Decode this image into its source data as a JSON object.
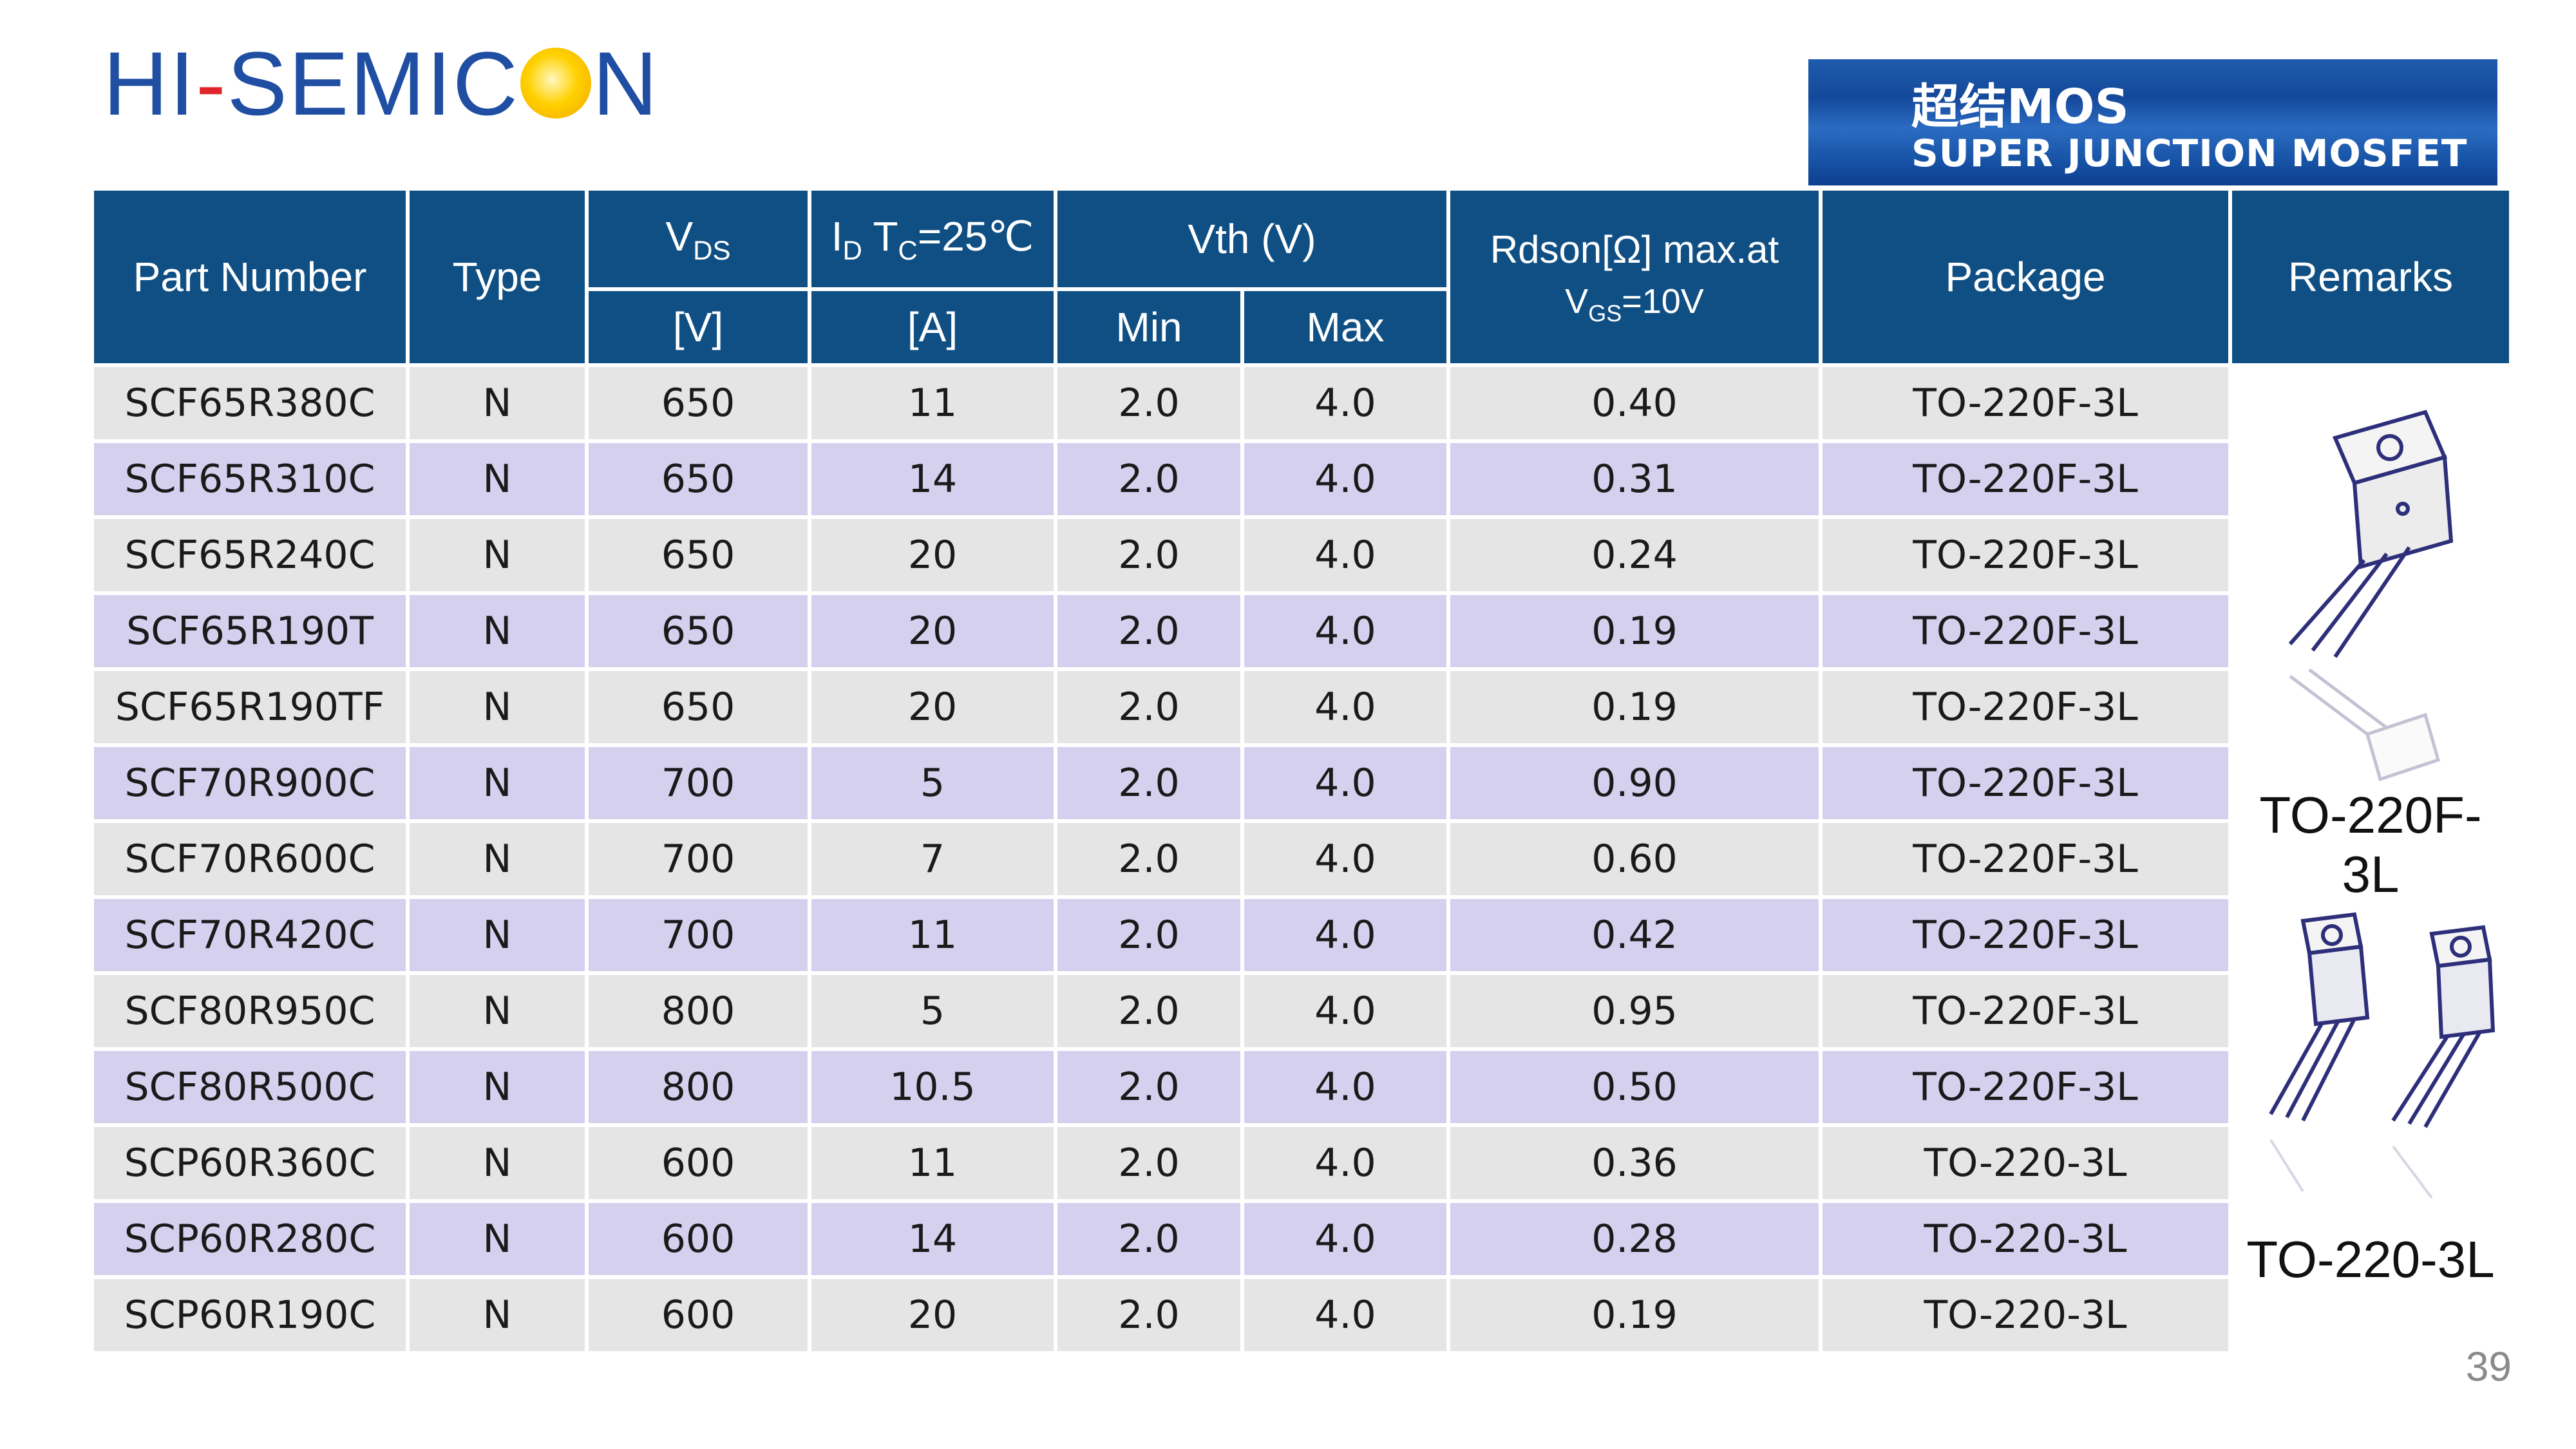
{
  "logo": {
    "part1": "HI",
    "dash": "-",
    "part2": "SEMIC",
    "part3": "N"
  },
  "banner": {
    "cn": "超结MOS",
    "en": "SUPER JUNCTION MOSFET"
  },
  "headers": {
    "part_number": "Part Number",
    "type": "Type",
    "vds": "V",
    "vds_sub": "DS",
    "vds_unit": "[V]",
    "id": "I",
    "id_sub": "D",
    "id_tc": " T",
    "id_tc_sub": "C",
    "id_cond": "=25℃",
    "id_unit": "[A]",
    "vth": "Vth (V)",
    "vth_min": "Min",
    "vth_max": "Max",
    "rdson": "Rdson[Ω] max.at",
    "rdson_v": "V",
    "rdson_v_sub": "GS",
    "rdson_cond": "=10V",
    "package": "Package",
    "remarks": "Remarks"
  },
  "rows": [
    {
      "part": "SCF65R380C",
      "type": "N",
      "vds": "650",
      "id": "11",
      "min": "2.0",
      "max": "4.0",
      "rdson": "0.40",
      "pkg": "TO-220F-3L"
    },
    {
      "part": "SCF65R310C",
      "type": "N",
      "vds": "650",
      "id": "14",
      "min": "2.0",
      "max": "4.0",
      "rdson": "0.31",
      "pkg": "TO-220F-3L"
    },
    {
      "part": "SCF65R240C",
      "type": "N",
      "vds": "650",
      "id": "20",
      "min": "2.0",
      "max": "4.0",
      "rdson": "0.24",
      "pkg": "TO-220F-3L"
    },
    {
      "part": "SCF65R190T",
      "type": "N",
      "vds": "650",
      "id": "20",
      "min": "2.0",
      "max": "4.0",
      "rdson": "0.19",
      "pkg": "TO-220F-3L"
    },
    {
      "part": "SCF65R190TF",
      "type": "N",
      "vds": "650",
      "id": "20",
      "min": "2.0",
      "max": "4.0",
      "rdson": "0.19",
      "pkg": "TO-220F-3L"
    },
    {
      "part": "SCF70R900C",
      "type": "N",
      "vds": "700",
      "id": "5",
      "min": "2.0",
      "max": "4.0",
      "rdson": "0.90",
      "pkg": "TO-220F-3L"
    },
    {
      "part": "SCF70R600C",
      "type": "N",
      "vds": "700",
      "id": "7",
      "min": "2.0",
      "max": "4.0",
      "rdson": "0.60",
      "pkg": "TO-220F-3L"
    },
    {
      "part": "SCF70R420C",
      "type": "N",
      "vds": "700",
      "id": "11",
      "min": "2.0",
      "max": "4.0",
      "rdson": "0.42",
      "pkg": "TO-220F-3L"
    },
    {
      "part": "SCF80R950C",
      "type": "N",
      "vds": "800",
      "id": "5",
      "min": "2.0",
      "max": "4.0",
      "rdson": "0.95",
      "pkg": "TO-220F-3L"
    },
    {
      "part": "SCF80R500C",
      "type": "N",
      "vds": "800",
      "id": "10.5",
      "min": "2.0",
      "max": "4.0",
      "rdson": "0.50",
      "pkg": "TO-220F-3L"
    },
    {
      "part": "SCP60R360C",
      "type": "N",
      "vds": "600",
      "id": "11",
      "min": "2.0",
      "max": "4.0",
      "rdson": "0.36",
      "pkg": "TO-220-3L"
    },
    {
      "part": "SCP60R280C",
      "type": "N",
      "vds": "600",
      "id": "14",
      "min": "2.0",
      "max": "4.0",
      "rdson": "0.28",
      "pkg": "TO-220-3L"
    },
    {
      "part": "SCP60R190C",
      "type": "N",
      "vds": "600",
      "id": "20",
      "min": "2.0",
      "max": "4.0",
      "rdson": "0.19",
      "pkg": "TO-220-3L"
    }
  ],
  "remarks": {
    "pkg1": "TO-220F-3L",
    "pkg2": "TO-220-3L"
  },
  "page_number": "39"
}
